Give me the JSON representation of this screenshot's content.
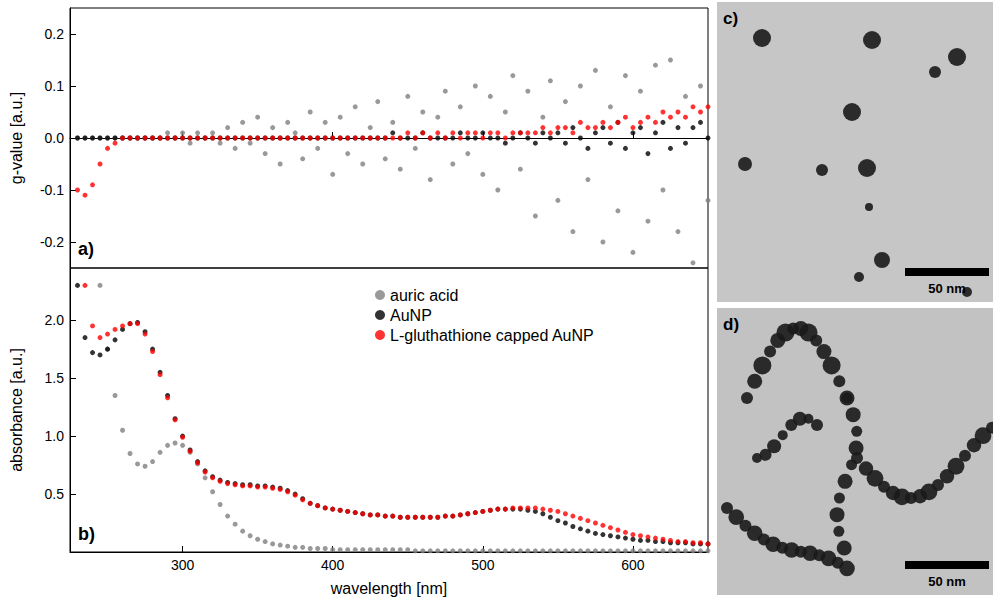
{
  "chart_data": [
    {
      "type": "scatter",
      "panel_label": "a)",
      "y_label": "g-value [a.u.]",
      "xlim": [
        225,
        650
      ],
      "xticks": [
        300,
        400,
        500,
        600
      ],
      "ylim": [
        -0.25,
        0.25
      ],
      "yticks": [
        -0.2,
        -0.1,
        {
          "value": 0,
          "label": "0.0"
        },
        0.1,
        0.2
      ],
      "tick_labels": "y",
      "grid": false,
      "marker": "circle",
      "x": [
        230,
        235,
        240,
        245,
        250,
        255,
        260,
        265,
        270,
        275,
        280,
        285,
        290,
        295,
        300,
        305,
        310,
        315,
        320,
        325,
        330,
        335,
        340,
        345,
        350,
        355,
        360,
        365,
        370,
        375,
        380,
        385,
        390,
        395,
        400,
        405,
        410,
        415,
        420,
        425,
        430,
        435,
        440,
        445,
        450,
        455,
        460,
        465,
        470,
        475,
        480,
        485,
        490,
        495,
        500,
        505,
        510,
        515,
        520,
        525,
        530,
        535,
        540,
        545,
        550,
        555,
        560,
        565,
        570,
        575,
        580,
        585,
        590,
        595,
        600,
        605,
        610,
        615,
        620,
        625,
        630,
        635,
        640,
        645,
        650
      ],
      "series": [
        {
          "name": "auric acid",
          "color": "#808080",
          "values": [
            0,
            0,
            0,
            0,
            0,
            0,
            0,
            0,
            0,
            0,
            0,
            0,
            0.01,
            0,
            0.01,
            -0.01,
            0.01,
            0,
            0.01,
            -0.01,
            0.02,
            -0.02,
            0.03,
            -0.01,
            0.04,
            -0.03,
            0.02,
            -0.05,
            0.03,
            0.01,
            -0.04,
            0.05,
            -0.02,
            0.03,
            -0.07,
            0.04,
            -0.03,
            0.06,
            -0.05,
            0.02,
            0.07,
            -0.04,
            0.03,
            -0.06,
            0.08,
            -0.02,
            0.05,
            -0.08,
            0.04,
            0.09,
            -0.05,
            0.06,
            -0.03,
            0.1,
            -0.07,
            0.08,
            -0.1,
            0.05,
            0.12,
            -0.06,
            0.09,
            -0.15,
            0.04,
            0.11,
            -0.12,
            0.07,
            -0.18,
            0.1,
            -0.08,
            0.13,
            -0.2,
            0.06,
            -0.14,
            0.12,
            -0.22,
            0.09,
            -0.16,
            0.14,
            -0.1,
            0.15,
            -0.18,
            0.08,
            -0.24,
            0.1,
            -0.12
          ]
        },
        {
          "name": "AuNP",
          "color": "#000000",
          "values": [
            0,
            0,
            0,
            0,
            0,
            0,
            0,
            0,
            0,
            0,
            0,
            0,
            0,
            0,
            0,
            0,
            0,
            0,
            0,
            0,
            0,
            0,
            0,
            0,
            0,
            0,
            0,
            0,
            0,
            0,
            0,
            0,
            0,
            0,
            0,
            0,
            0,
            0,
            0,
            0,
            0,
            0,
            0.01,
            0,
            0,
            0,
            0.01,
            0,
            0,
            0,
            0,
            0.01,
            0,
            0,
            0.01,
            0,
            0,
            -0.01,
            0,
            0.01,
            0,
            -0.01,
            0.01,
            0,
            0.01,
            -0.01,
            0.02,
            0,
            -0.02,
            0.01,
            0.02,
            -0.01,
            0.03,
            -0.02,
            0.01,
            0.02,
            -0.03,
            0.01,
            0.03,
            -0.02,
            0.02,
            -0.01,
            0.02,
            0.03,
            0
          ]
        },
        {
          "name": "L-gluthathione capped AuNP",
          "color": "#ff0000",
          "values": [
            -0.1,
            -0.11,
            -0.09,
            -0.05,
            -0.02,
            -0.01,
            0,
            0,
            0,
            0,
            0,
            0,
            0,
            0,
            0,
            0,
            0,
            0,
            0,
            0,
            0,
            0,
            0,
            0,
            0,
            0,
            0,
            0,
            0,
            0,
            0,
            0,
            0,
            0,
            0,
            0,
            0,
            0,
            0,
            0,
            0,
            0,
            0,
            0,
            0.01,
            0,
            0.01,
            0,
            0.01,
            0,
            0.01,
            0,
            0.01,
            0.01,
            0,
            0.01,
            0.01,
            0,
            0.01,
            0.01,
            0.01,
            0.01,
            0.02,
            0.01,
            0.02,
            0.02,
            0.01,
            0.03,
            0.02,
            0.02,
            0.03,
            0.02,
            0.03,
            0.04,
            0.02,
            0.03,
            0.04,
            0.03,
            0.05,
            0.04,
            0.05,
            0.04,
            0.06,
            0.05,
            0.06
          ]
        }
      ]
    },
    {
      "type": "scatter",
      "panel_label": "b)",
      "x_label": "wavelength [nm]",
      "y_label": "absorbance [a.u.]",
      "xlim": [
        225,
        650
      ],
      "xticks": [
        300,
        400,
        500,
        600
      ],
      "ylim": [
        0,
        2.45
      ],
      "yticks": [
        0.5,
        {
          "value": 1,
          "label": "1.0"
        },
        1.5,
        {
          "value": 2,
          "label": "2.0"
        }
      ],
      "grid": false,
      "legend": "top",
      "marker": "circle",
      "x": [
        230,
        235,
        240,
        245,
        250,
        255,
        260,
        265,
        270,
        275,
        280,
        285,
        290,
        295,
        300,
        305,
        310,
        315,
        320,
        325,
        330,
        335,
        340,
        345,
        350,
        355,
        360,
        365,
        370,
        375,
        380,
        385,
        390,
        395,
        400,
        405,
        410,
        415,
        420,
        425,
        430,
        435,
        440,
        445,
        450,
        455,
        460,
        465,
        470,
        475,
        480,
        485,
        490,
        495,
        500,
        505,
        510,
        515,
        520,
        525,
        530,
        535,
        540,
        545,
        550,
        555,
        560,
        565,
        570,
        575,
        580,
        585,
        590,
        595,
        600,
        605,
        610,
        615,
        620,
        625,
        630,
        635,
        640,
        645,
        650
      ],
      "series": [
        {
          "name": "auric acid",
          "color": "#808080",
          "values": [
            null,
            null,
            null,
            2.3,
            1.75,
            1.35,
            1.05,
            0.85,
            0.76,
            0.74,
            0.78,
            0.86,
            0.92,
            0.94,
            0.92,
            0.86,
            0.76,
            0.64,
            0.52,
            0.41,
            0.31,
            0.24,
            0.18,
            0.14,
            0.11,
            0.09,
            0.07,
            0.06,
            0.05,
            0.04,
            0.04,
            0.03,
            0.03,
            0.03,
            0.02,
            0.02,
            0.02,
            0.02,
            0.02,
            0.02,
            0.02,
            0.02,
            0.02,
            0.02,
            0.02,
            0.01,
            0.01,
            0.01,
            0.01,
            0.01,
            0.01,
            0.01,
            0.01,
            0.01,
            0.01,
            0.01,
            0.01,
            0.01,
            0.01,
            0.01,
            0.01,
            0.01,
            0.01,
            0.01,
            0.01,
            0.01,
            0.01,
            0.01,
            0.01,
            0.01,
            0.01,
            0.01,
            0.01,
            0.01,
            0.01,
            0.01,
            0.01,
            0.01,
            0.01,
            0.01,
            0.01,
            0.01,
            0.01,
            0.01,
            0.01
          ]
        },
        {
          "name": "AuNP",
          "color": "#000000",
          "values": [
            2.3,
            1.85,
            1.72,
            1.7,
            1.75,
            1.83,
            1.92,
            1.97,
            1.98,
            1.9,
            1.75,
            1.55,
            1.35,
            1.15,
            1.0,
            0.88,
            0.78,
            0.7,
            0.65,
            0.62,
            0.6,
            0.59,
            0.58,
            0.58,
            0.57,
            0.57,
            0.56,
            0.55,
            0.53,
            0.5,
            0.46,
            0.42,
            0.4,
            0.38,
            0.37,
            0.36,
            0.35,
            0.34,
            0.33,
            0.32,
            0.32,
            0.31,
            0.31,
            0.3,
            0.3,
            0.3,
            0.3,
            0.3,
            0.3,
            0.31,
            0.31,
            0.32,
            0.33,
            0.34,
            0.35,
            0.36,
            0.37,
            0.37,
            0.37,
            0.37,
            0.36,
            0.35,
            0.33,
            0.3,
            0.27,
            0.25,
            0.22,
            0.2,
            0.18,
            0.16,
            0.15,
            0.14,
            0.13,
            0.12,
            0.11,
            0.1,
            0.1,
            0.09,
            0.09,
            0.08,
            0.08,
            0.08,
            0.07,
            0.07,
            0.07
          ]
        },
        {
          "name": "L-gluthathione capped AuNP",
          "color": "#ff0000",
          "values": [
            null,
            2.3,
            1.95,
            1.85,
            1.88,
            1.92,
            1.95,
            1.97,
            1.97,
            1.88,
            1.73,
            1.53,
            1.33,
            1.14,
            0.99,
            0.87,
            0.77,
            0.69,
            0.64,
            0.61,
            0.59,
            0.58,
            0.57,
            0.57,
            0.56,
            0.56,
            0.55,
            0.54,
            0.52,
            0.49,
            0.45,
            0.42,
            0.4,
            0.38,
            0.37,
            0.36,
            0.35,
            0.34,
            0.33,
            0.32,
            0.32,
            0.31,
            0.31,
            0.3,
            0.3,
            0.3,
            0.3,
            0.3,
            0.3,
            0.31,
            0.31,
            0.32,
            0.33,
            0.34,
            0.35,
            0.36,
            0.37,
            0.37,
            0.38,
            0.38,
            0.38,
            0.38,
            0.37,
            0.36,
            0.35,
            0.33,
            0.31,
            0.29,
            0.27,
            0.25,
            0.23,
            0.21,
            0.19,
            0.17,
            0.15,
            0.14,
            0.13,
            0.12,
            0.11,
            0.1,
            0.09,
            0.09,
            0.08,
            0.08,
            0.07
          ]
        }
      ]
    }
  ],
  "images": [
    {
      "label": "c)",
      "scale_bar": "50 nm"
    },
    {
      "label": "d)",
      "scale_bar": "50 nm"
    }
  ]
}
